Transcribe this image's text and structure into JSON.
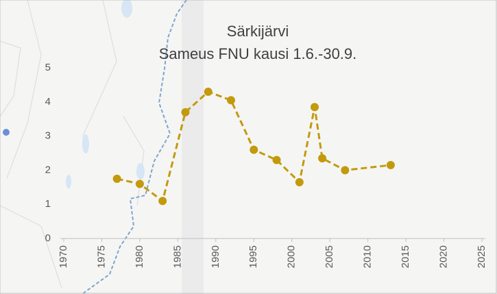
{
  "chart_data": {
    "type": "line",
    "title": "Särkijärvi",
    "subtitle": "Sameus FNU kausi 1.6.-30.9.",
    "x": [
      1977,
      1980,
      1983,
      1986,
      1989,
      1992,
      1995,
      1998,
      2001,
      2003,
      2004,
      2007,
      2013
    ],
    "series": [
      {
        "color": "#c29a0c",
        "values": [
          1.75,
          1.6,
          1.1,
          3.7,
          4.3,
          4.05,
          2.6,
          2.3,
          1.65,
          3.85,
          2.35,
          2.0,
          2.15
        ]
      }
    ],
    "xlim": [
      1970,
      2025
    ],
    "xticks": [
      1970,
      1975,
      1980,
      1985,
      1990,
      1995,
      2000,
      2005,
      2010,
      2015,
      2020,
      2025
    ],
    "ylim": [
      0,
      5
    ],
    "yticks": [
      0,
      1,
      2,
      3,
      4,
      5
    ],
    "grid": false
  }
}
